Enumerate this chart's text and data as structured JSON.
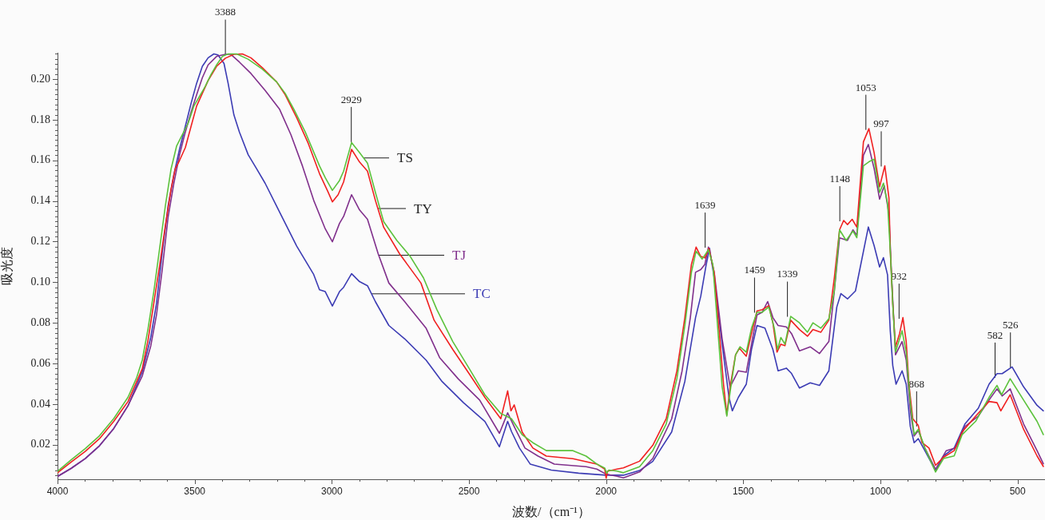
{
  "chart_data": {
    "type": "line",
    "xlabel": "波数/（cm⁻¹）",
    "ylabel": "吸光度",
    "xlim": [
      4000,
      400
    ],
    "ylim": [
      0.003,
      0.213
    ],
    "xticks": [
      4000,
      {
        "value": 3900,
        "label": null
      },
      {
        "value": 3800,
        "label": null
      },
      {
        "value": 3700,
        "label": null
      },
      {
        "value": 3600,
        "label": null
      },
      3500,
      {
        "value": 3400,
        "label": null
      },
      {
        "value": 3300,
        "label": null
      },
      {
        "value": 3200,
        "label": null
      },
      {
        "value": 3100,
        "label": null
      },
      3000,
      {
        "value": 2900,
        "label": null
      },
      {
        "value": 2800,
        "label": null
      },
      {
        "value": 2700,
        "label": null
      },
      {
        "value": 2600,
        "label": null
      },
      2500,
      {
        "value": 2400,
        "label": null
      },
      {
        "value": 2300,
        "label": null
      },
      {
        "value": 2200,
        "label": null
      },
      {
        "value": 2100,
        "label": null
      },
      2000,
      {
        "value": 1900,
        "label": null
      },
      {
        "value": 1800,
        "label": null
      },
      {
        "value": 1700,
        "label": null
      },
      {
        "value": 1600,
        "label": null
      },
      1500,
      {
        "value": 1400,
        "label": null
      },
      {
        "value": 1300,
        "label": null
      },
      {
        "value": 1200,
        "label": null
      },
      {
        "value": 1100,
        "label": null
      },
      1000,
      {
        "value": 900,
        "label": null
      },
      {
        "value": 800,
        "label": null
      },
      {
        "value": 700,
        "label": null
      },
      {
        "value": 600,
        "label": null
      },
      500
    ],
    "yticks": [
      {
        "value": 0.005,
        "label": null
      },
      {
        "value": 0.0075,
        "label": null
      },
      {
        "value": 0.01,
        "label": null
      },
      {
        "value": 0.0125,
        "label": null
      },
      {
        "value": 0.015,
        "label": null
      },
      {
        "value": 0.0175,
        "label": null
      },
      {
        "value": 0.02,
        "label": "0.02"
      },
      {
        "value": 0.0225,
        "label": null
      },
      {
        "value": 0.025,
        "label": null
      },
      {
        "value": 0.0275,
        "label": null
      },
      {
        "value": 0.03,
        "label": null
      },
      {
        "value": 0.0325,
        "label": null
      },
      {
        "value": 0.035,
        "label": null
      },
      {
        "value": 0.0375,
        "label": null
      },
      {
        "value": 0.04,
        "label": "0.04"
      },
      {
        "value": 0.0425,
        "label": null
      },
      {
        "value": 0.045,
        "label": null
      },
      {
        "value": 0.0475,
        "label": null
      },
      {
        "value": 0.05,
        "label": null
      },
      {
        "value": 0.0525,
        "label": null
      },
      {
        "value": 0.055,
        "label": null
      },
      {
        "value": 0.0575,
        "label": null
      },
      {
        "value": 0.06,
        "label": "0.06"
      },
      {
        "value": 0.0625,
        "label": null
      },
      {
        "value": 0.065,
        "label": null
      },
      {
        "value": 0.0675,
        "label": null
      },
      {
        "value": 0.07,
        "label": null
      },
      {
        "value": 0.0725,
        "label": null
      },
      {
        "value": 0.075,
        "label": null
      },
      {
        "value": 0.0775,
        "label": null
      },
      {
        "value": 0.08,
        "label": "0.08"
      },
      {
        "value": 0.0825,
        "label": null
      },
      {
        "value": 0.085,
        "label": null
      },
      {
        "value": 0.0875,
        "label": null
      },
      {
        "value": 0.09,
        "label": null
      },
      {
        "value": 0.0925,
        "label": null
      },
      {
        "value": 0.095,
        "label": null
      },
      {
        "value": 0.0975,
        "label": null
      },
      {
        "value": 0.1,
        "label": "0.10"
      },
      {
        "value": 0.1025,
        "label": null
      },
      {
        "value": 0.105,
        "label": null
      },
      {
        "value": 0.1075,
        "label": null
      },
      {
        "value": 0.11,
        "label": null
      },
      {
        "value": 0.1125,
        "label": null
      },
      {
        "value": 0.115,
        "label": null
      },
      {
        "value": 0.1175,
        "label": null
      },
      {
        "value": 0.12,
        "label": "0.12"
      },
      {
        "value": 0.1225,
        "label": null
      },
      {
        "value": 0.125,
        "label": null
      },
      {
        "value": 0.1275,
        "label": null
      },
      {
        "value": 0.13,
        "label": null
      },
      {
        "value": 0.1325,
        "label": null
      },
      {
        "value": 0.135,
        "label": null
      },
      {
        "value": 0.1375,
        "label": null
      },
      {
        "value": 0.14,
        "label": "0.14"
      },
      {
        "value": 0.1425,
        "label": null
      },
      {
        "value": 0.145,
        "label": null
      },
      {
        "value": 0.1475,
        "label": null
      },
      {
        "value": 0.15,
        "label": null
      },
      {
        "value": 0.1525,
        "label": null
      },
      {
        "value": 0.155,
        "label": null
      },
      {
        "value": 0.1575,
        "label": null
      },
      {
        "value": 0.16,
        "label": "0.16"
      },
      {
        "value": 0.1625,
        "label": null
      },
      {
        "value": 0.165,
        "label": null
      },
      {
        "value": 0.1675,
        "label": null
      },
      {
        "value": 0.17,
        "label": null
      },
      {
        "value": 0.1725,
        "label": null
      },
      {
        "value": 0.175,
        "label": null
      },
      {
        "value": 0.1775,
        "label": null
      },
      {
        "value": 0.18,
        "label": "0.18"
      },
      {
        "value": 0.1825,
        "label": null
      },
      {
        "value": 0.185,
        "label": null
      },
      {
        "value": 0.1875,
        "label": null
      },
      {
        "value": 0.19,
        "label": null
      },
      {
        "value": 0.1925,
        "label": null
      },
      {
        "value": 0.195,
        "label": null
      },
      {
        "value": 0.1975,
        "label": null
      },
      {
        "value": 0.2,
        "label": "0.20"
      },
      {
        "value": 0.2025,
        "label": null
      },
      {
        "value": 0.205,
        "label": null
      },
      {
        "value": 0.2075,
        "label": null
      },
      {
        "value": 0.21,
        "label": null
      },
      {
        "value": 0.2125,
        "label": null
      }
    ],
    "annotations": [
      {
        "text": "3388",
        "x": 3388,
        "y": 0.212
      },
      {
        "text": "2929",
        "x": 2929,
        "y": 0.169
      },
      {
        "text": "1639",
        "x": 1639,
        "y": 0.117
      },
      {
        "text": "1459",
        "x": 1459,
        "y": 0.085
      },
      {
        "text": "1339",
        "x": 1339,
        "y": 0.083
      },
      {
        "text": "1148",
        "x": 1148,
        "y": 0.13
      },
      {
        "text": "1053",
        "x": 1053,
        "y": 0.175
      },
      {
        "text": "997",
        "x": 997,
        "y": 0.157
      },
      {
        "text": "932",
        "x": 932,
        "y": 0.082
      },
      {
        "text": "868",
        "x": 868,
        "y": 0.029
      },
      {
        "text": "582",
        "x": 582,
        "y": 0.053
      },
      {
        "text": "526",
        "x": 526,
        "y": 0.058
      }
    ],
    "series": [
      {
        "name": "TS",
        "color": "#5cc23c",
        "x": [
          4000,
          3951,
          3899,
          3847,
          3795,
          3743,
          3711,
          3691,
          3670,
          3649,
          3628,
          3607,
          3586,
          3566,
          3545,
          3524,
          3503,
          3482,
          3461,
          3441,
          3420,
          3399,
          3378,
          3347,
          3305,
          3253,
          3201,
          3170,
          3139,
          3097,
          3045,
          3024,
          2998,
          2972,
          2957,
          2928,
          2899,
          2870,
          2841,
          2811,
          2763,
          2714,
          2666,
          2617,
          2559,
          2500,
          2442,
          2384,
          2364,
          2345,
          2306,
          2267,
          2218,
          2121,
          2073,
          2034,
          2005,
          1998,
          1990,
          1960,
          1937,
          1878,
          1830,
          1781,
          1742,
          1713,
          1689,
          1672,
          1650,
          1627,
          1611,
          1596,
          1577,
          1560,
          1548,
          1528,
          1512,
          1489,
          1470,
          1450,
          1431,
          1407,
          1387,
          1375,
          1363,
          1348,
          1327,
          1295,
          1266,
          1246,
          1217,
          1188,
          1168,
          1149,
          1125,
          1100,
          1086,
          1062,
          1042,
          1023,
          1003,
          989,
          974,
          964,
          955,
          945,
          921,
          906,
          891,
          877,
          862,
          838,
          799,
          770,
          731,
          702,
          653,
          604,
          575,
          558,
          527,
          478,
          429,
          406
        ],
        "values": [
          0.0069,
          0.0125,
          0.0181,
          0.0244,
          0.0329,
          0.0434,
          0.0532,
          0.0617,
          0.0771,
          0.0954,
          0.1164,
          0.1375,
          0.1558,
          0.167,
          0.1726,
          0.1782,
          0.1867,
          0.1916,
          0.1965,
          0.2021,
          0.207,
          0.2112,
          0.2124,
          0.2124,
          0.2098,
          0.2049,
          0.1986,
          0.193,
          0.1853,
          0.174,
          0.1573,
          0.1515,
          0.1452,
          0.1501,
          0.1547,
          0.1688,
          0.1638,
          0.1586,
          0.1442,
          0.1298,
          0.1206,
          0.1127,
          0.1022,
          0.0865,
          0.0708,
          0.0577,
          0.0446,
          0.0354,
          0.0341,
          0.0328,
          0.0249,
          0.021,
          0.0171,
          0.0171,
          0.0144,
          0.0105,
          0.0085,
          0.006,
          0.0075,
          0.007,
          0.0062,
          0.0092,
          0.0171,
          0.0302,
          0.0525,
          0.0787,
          0.1049,
          0.1153,
          0.1114,
          0.116,
          0.1088,
          0.0826,
          0.0485,
          0.0341,
          0.0459,
          0.0643,
          0.0682,
          0.0656,
          0.0774,
          0.0852,
          0.0852,
          0.0878,
          0.0774,
          0.0669,
          0.0728,
          0.0695,
          0.0832,
          0.08,
          0.0754,
          0.08,
          0.0774,
          0.082,
          0.0957,
          0.1258,
          0.1206,
          0.1252,
          0.1219,
          0.1573,
          0.1593,
          0.1606,
          0.1442,
          0.1488,
          0.139,
          0.1154,
          0.0892,
          0.0656,
          0.0761,
          0.0656,
          0.0407,
          0.025,
          0.0276,
          0.0184,
          0.0066,
          0.0132,
          0.0145,
          0.025,
          0.0315,
          0.0433,
          0.0492,
          0.0446,
          0.0525,
          0.042,
          0.0315,
          0.025
        ]
      },
      {
        "name": "TY",
        "color": "#f02020",
        "x": [
          4000,
          3951,
          3899,
          3847,
          3795,
          3743,
          3691,
          3670,
          3649,
          3628,
          3607,
          3586,
          3571,
          3555,
          3534,
          3513,
          3493,
          3472,
          3451,
          3420,
          3388,
          3357,
          3326,
          3295,
          3253,
          3201,
          3170,
          3128,
          3086,
          3045,
          3014,
          2998,
          2977,
          2957,
          2928,
          2899,
          2870,
          2841,
          2811,
          2753,
          2675,
          2627,
          2559,
          2500,
          2442,
          2384,
          2359,
          2347,
          2335,
          2306,
          2267,
          2218,
          2121,
          2034,
          2005,
          2000,
          1995,
          1960,
          1937,
          1878,
          1830,
          1781,
          1742,
          1713,
          1689,
          1672,
          1655,
          1640,
          1625,
          1606,
          1587,
          1572,
          1560,
          1548,
          1528,
          1514,
          1489,
          1470,
          1450,
          1431,
          1407,
          1392,
          1377,
          1363,
          1348,
          1327,
          1295,
          1266,
          1246,
          1217,
          1188,
          1168,
          1149,
          1134,
          1120,
          1103,
          1086,
          1062,
          1042,
          1023,
          1003,
          984,
          969,
          964,
          955,
          945,
          930,
          918,
          906,
          896,
          882,
          862,
          848,
          823,
          799,
          770,
          731,
          702,
          653,
          604,
          575,
          561,
          527,
          478,
          429,
          406
        ],
        "values": [
          0.0062,
          0.0114,
          0.0167,
          0.023,
          0.0315,
          0.0413,
          0.0574,
          0.0715,
          0.0897,
          0.108,
          0.1277,
          0.1459,
          0.1558,
          0.16,
          0.1663,
          0.1768,
          0.1867,
          0.193,
          0.1993,
          0.2063,
          0.2103,
          0.2122,
          0.2124,
          0.2105,
          0.2056,
          0.1986,
          0.1923,
          0.181,
          0.1684,
          0.1535,
          0.1445,
          0.1396,
          0.1431,
          0.1494,
          0.1654,
          0.1592,
          0.1547,
          0.1402,
          0.1271,
          0.114,
          0.0996,
          0.0813,
          0.0669,
          0.0551,
          0.0433,
          0.0328,
          0.0465,
          0.0367,
          0.0396,
          0.0262,
          0.0184,
          0.0144,
          0.0131,
          0.0105,
          0.008,
          0.0035,
          0.007,
          0.008,
          0.0086,
          0.0119,
          0.0197,
          0.0328,
          0.0564,
          0.0826,
          0.1088,
          0.1173,
          0.1127,
          0.112,
          0.1167,
          0.1049,
          0.0747,
          0.0498,
          0.0348,
          0.0485,
          0.0643,
          0.0675,
          0.0636,
          0.0747,
          0.0859,
          0.0865,
          0.0885,
          0.08,
          0.0656,
          0.0695,
          0.0688,
          0.0813,
          0.0767,
          0.0734,
          0.0767,
          0.0754,
          0.0813,
          0.1022,
          0.1258,
          0.1304,
          0.1284,
          0.131,
          0.1271,
          0.1691,
          0.1756,
          0.1638,
          0.147,
          0.1573,
          0.1416,
          0.1154,
          0.0892,
          0.0682,
          0.0748,
          0.0826,
          0.0708,
          0.0498,
          0.0328,
          0.0295,
          0.021,
          0.0184,
          0.0099,
          0.0138,
          0.0171,
          0.0263,
          0.0341,
          0.0413,
          0.0407,
          0.0367,
          0.0446,
          0.0276,
          0.0145,
          0.0093
        ]
      },
      {
        "name": "TJ",
        "color": "#80308c",
        "x": [
          4000,
          3951,
          3899,
          3847,
          3795,
          3743,
          3691,
          3660,
          3639,
          3618,
          3597,
          3576,
          3555,
          3534,
          3513,
          3493,
          3472,
          3451,
          3420,
          3388,
          3368,
          3337,
          3295,
          3243,
          3191,
          3149,
          3107,
          3066,
          3024,
          2998,
          2972,
          2957,
          2928,
          2899,
          2870,
          2831,
          2792,
          2734,
          2656,
          2607,
          2539,
          2461,
          2389,
          2359,
          2335,
          2296,
          2248,
          2189,
          2073,
          2034,
          2000,
          1960,
          1937,
          1878,
          1830,
          1761,
          1723,
          1693,
          1674,
          1655,
          1640,
          1627,
          1606,
          1577,
          1548,
          1518,
          1489,
          1470,
          1450,
          1431,
          1411,
          1392,
          1373,
          1343,
          1324,
          1295,
          1256,
          1222,
          1188,
          1168,
          1149,
          1120,
          1100,
          1086,
          1062,
          1044,
          1023,
          1003,
          986,
          969,
          959,
          945,
          921,
          906,
          891,
          877,
          862,
          838,
          799,
          760,
          726,
          692,
          643,
          604,
          575,
          556,
          527,
          478,
          429,
          406
        ],
        "values": [
          0.0044,
          0.0083,
          0.0132,
          0.0195,
          0.028,
          0.0392,
          0.0539,
          0.0687,
          0.0841,
          0.1066,
          0.1319,
          0.1487,
          0.1628,
          0.174,
          0.1838,
          0.1923,
          0.2007,
          0.207,
          0.2112,
          0.2122,
          0.2122,
          0.2084,
          0.2028,
          0.1944,
          0.1853,
          0.1726,
          0.1572,
          0.1403,
          0.1263,
          0.1199,
          0.129,
          0.1324,
          0.1431,
          0.1356,
          0.131,
          0.114,
          0.0996,
          0.0904,
          0.0773,
          0.0629,
          0.0524,
          0.042,
          0.0256,
          0.0357,
          0.0289,
          0.0184,
          0.0144,
          0.0105,
          0.0092,
          0.008,
          0.0055,
          0.0045,
          0.0037,
          0.0066,
          0.0132,
          0.0328,
          0.0564,
          0.0826,
          0.1049,
          0.1062,
          0.1088,
          0.1173,
          0.1049,
          0.0721,
          0.0485,
          0.0564,
          0.0557,
          0.0695,
          0.0839,
          0.0852,
          0.0905,
          0.0826,
          0.0787,
          0.078,
          0.0747,
          0.0662,
          0.0682,
          0.0649,
          0.0708,
          0.0957,
          0.1219,
          0.1206,
          0.1258,
          0.1232,
          0.1625,
          0.1678,
          0.156,
          0.1409,
          0.1475,
          0.1337,
          0.1023,
          0.0643,
          0.0708,
          0.0617,
          0.0368,
          0.0243,
          0.027,
          0.0184,
          0.0079,
          0.0171,
          0.0184,
          0.0289,
          0.0341,
          0.042,
          0.0475,
          0.044,
          0.0475,
          0.0302,
          0.0171,
          0.0106
        ]
      },
      {
        "name": "TC",
        "color": "#3c3cb4",
        "x": [
          4000,
          3951,
          3899,
          3847,
          3795,
          3743,
          3691,
          3660,
          3639,
          3618,
          3597,
          3576,
          3555,
          3534,
          3513,
          3493,
          3472,
          3451,
          3430,
          3415,
          3393,
          3378,
          3357,
          3337,
          3305,
          3274,
          3243,
          3191,
          3128,
          3066,
          3045,
          3024,
          2998,
          2972,
          2957,
          2928,
          2899,
          2870,
          2841,
          2792,
          2734,
          2656,
          2598,
          2520,
          2442,
          2389,
          2359,
          2345,
          2316,
          2277,
          2200,
          2100,
          2000,
          1960,
          1937,
          1878,
          1830,
          1761,
          1713,
          1674,
          1655,
          1635,
          1623,
          1606,
          1577,
          1552,
          1540,
          1518,
          1489,
          1470,
          1450,
          1421,
          1392,
          1373,
          1343,
          1324,
          1295,
          1256,
          1222,
          1188,
          1159,
          1144,
          1120,
          1091,
          1044,
          1023,
          1003,
          989,
          974,
          964,
          955,
          943,
          921,
          906,
          891,
          877,
          862,
          838,
          799,
          770,
          731,
          692,
          643,
          604,
          575,
          556,
          520,
          478,
          429,
          406
        ],
        "values": [
          0.0044,
          0.0083,
          0.0132,
          0.0195,
          0.028,
          0.0392,
          0.056,
          0.0729,
          0.0897,
          0.115,
          0.1375,
          0.1529,
          0.1656,
          0.1768,
          0.1881,
          0.1979,
          0.2063,
          0.2105,
          0.2124,
          0.2119,
          0.2077,
          0.1979,
          0.1824,
          0.174,
          0.1628,
          0.1558,
          0.1487,
          0.1347,
          0.1178,
          0.1038,
          0.0963,
          0.0954,
          0.0883,
          0.0954,
          0.0975,
          0.1042,
          0.1003,
          0.0983,
          0.0904,
          0.0787,
          0.0721,
          0.0616,
          0.0511,
          0.0407,
          0.0315,
          0.019,
          0.0315,
          0.0265,
          0.0184,
          0.0105,
          0.0075,
          0.006,
          0.005,
          0.005,
          0.005,
          0.0073,
          0.0118,
          0.0263,
          0.0512,
          0.0826,
          0.0931,
          0.1088,
          0.1167,
          0.1022,
          0.0695,
          0.0433,
          0.0367,
          0.0433,
          0.0498,
          0.0669,
          0.0787,
          0.0774,
          0.0669,
          0.0564,
          0.0577,
          0.0551,
          0.0479,
          0.0505,
          0.0492,
          0.0564,
          0.0878,
          0.0944,
          0.0918,
          0.0957,
          0.1272,
          0.118,
          0.1075,
          0.1121,
          0.1036,
          0.076,
          0.059,
          0.0498,
          0.0564,
          0.0498,
          0.0289,
          0.021,
          0.023,
          0.0171,
          0.0073,
          0.0145,
          0.0184,
          0.0302,
          0.038,
          0.0498,
          0.055,
          0.055,
          0.0583,
          0.0485,
          0.0394,
          0.0367
        ]
      }
    ]
  }
}
